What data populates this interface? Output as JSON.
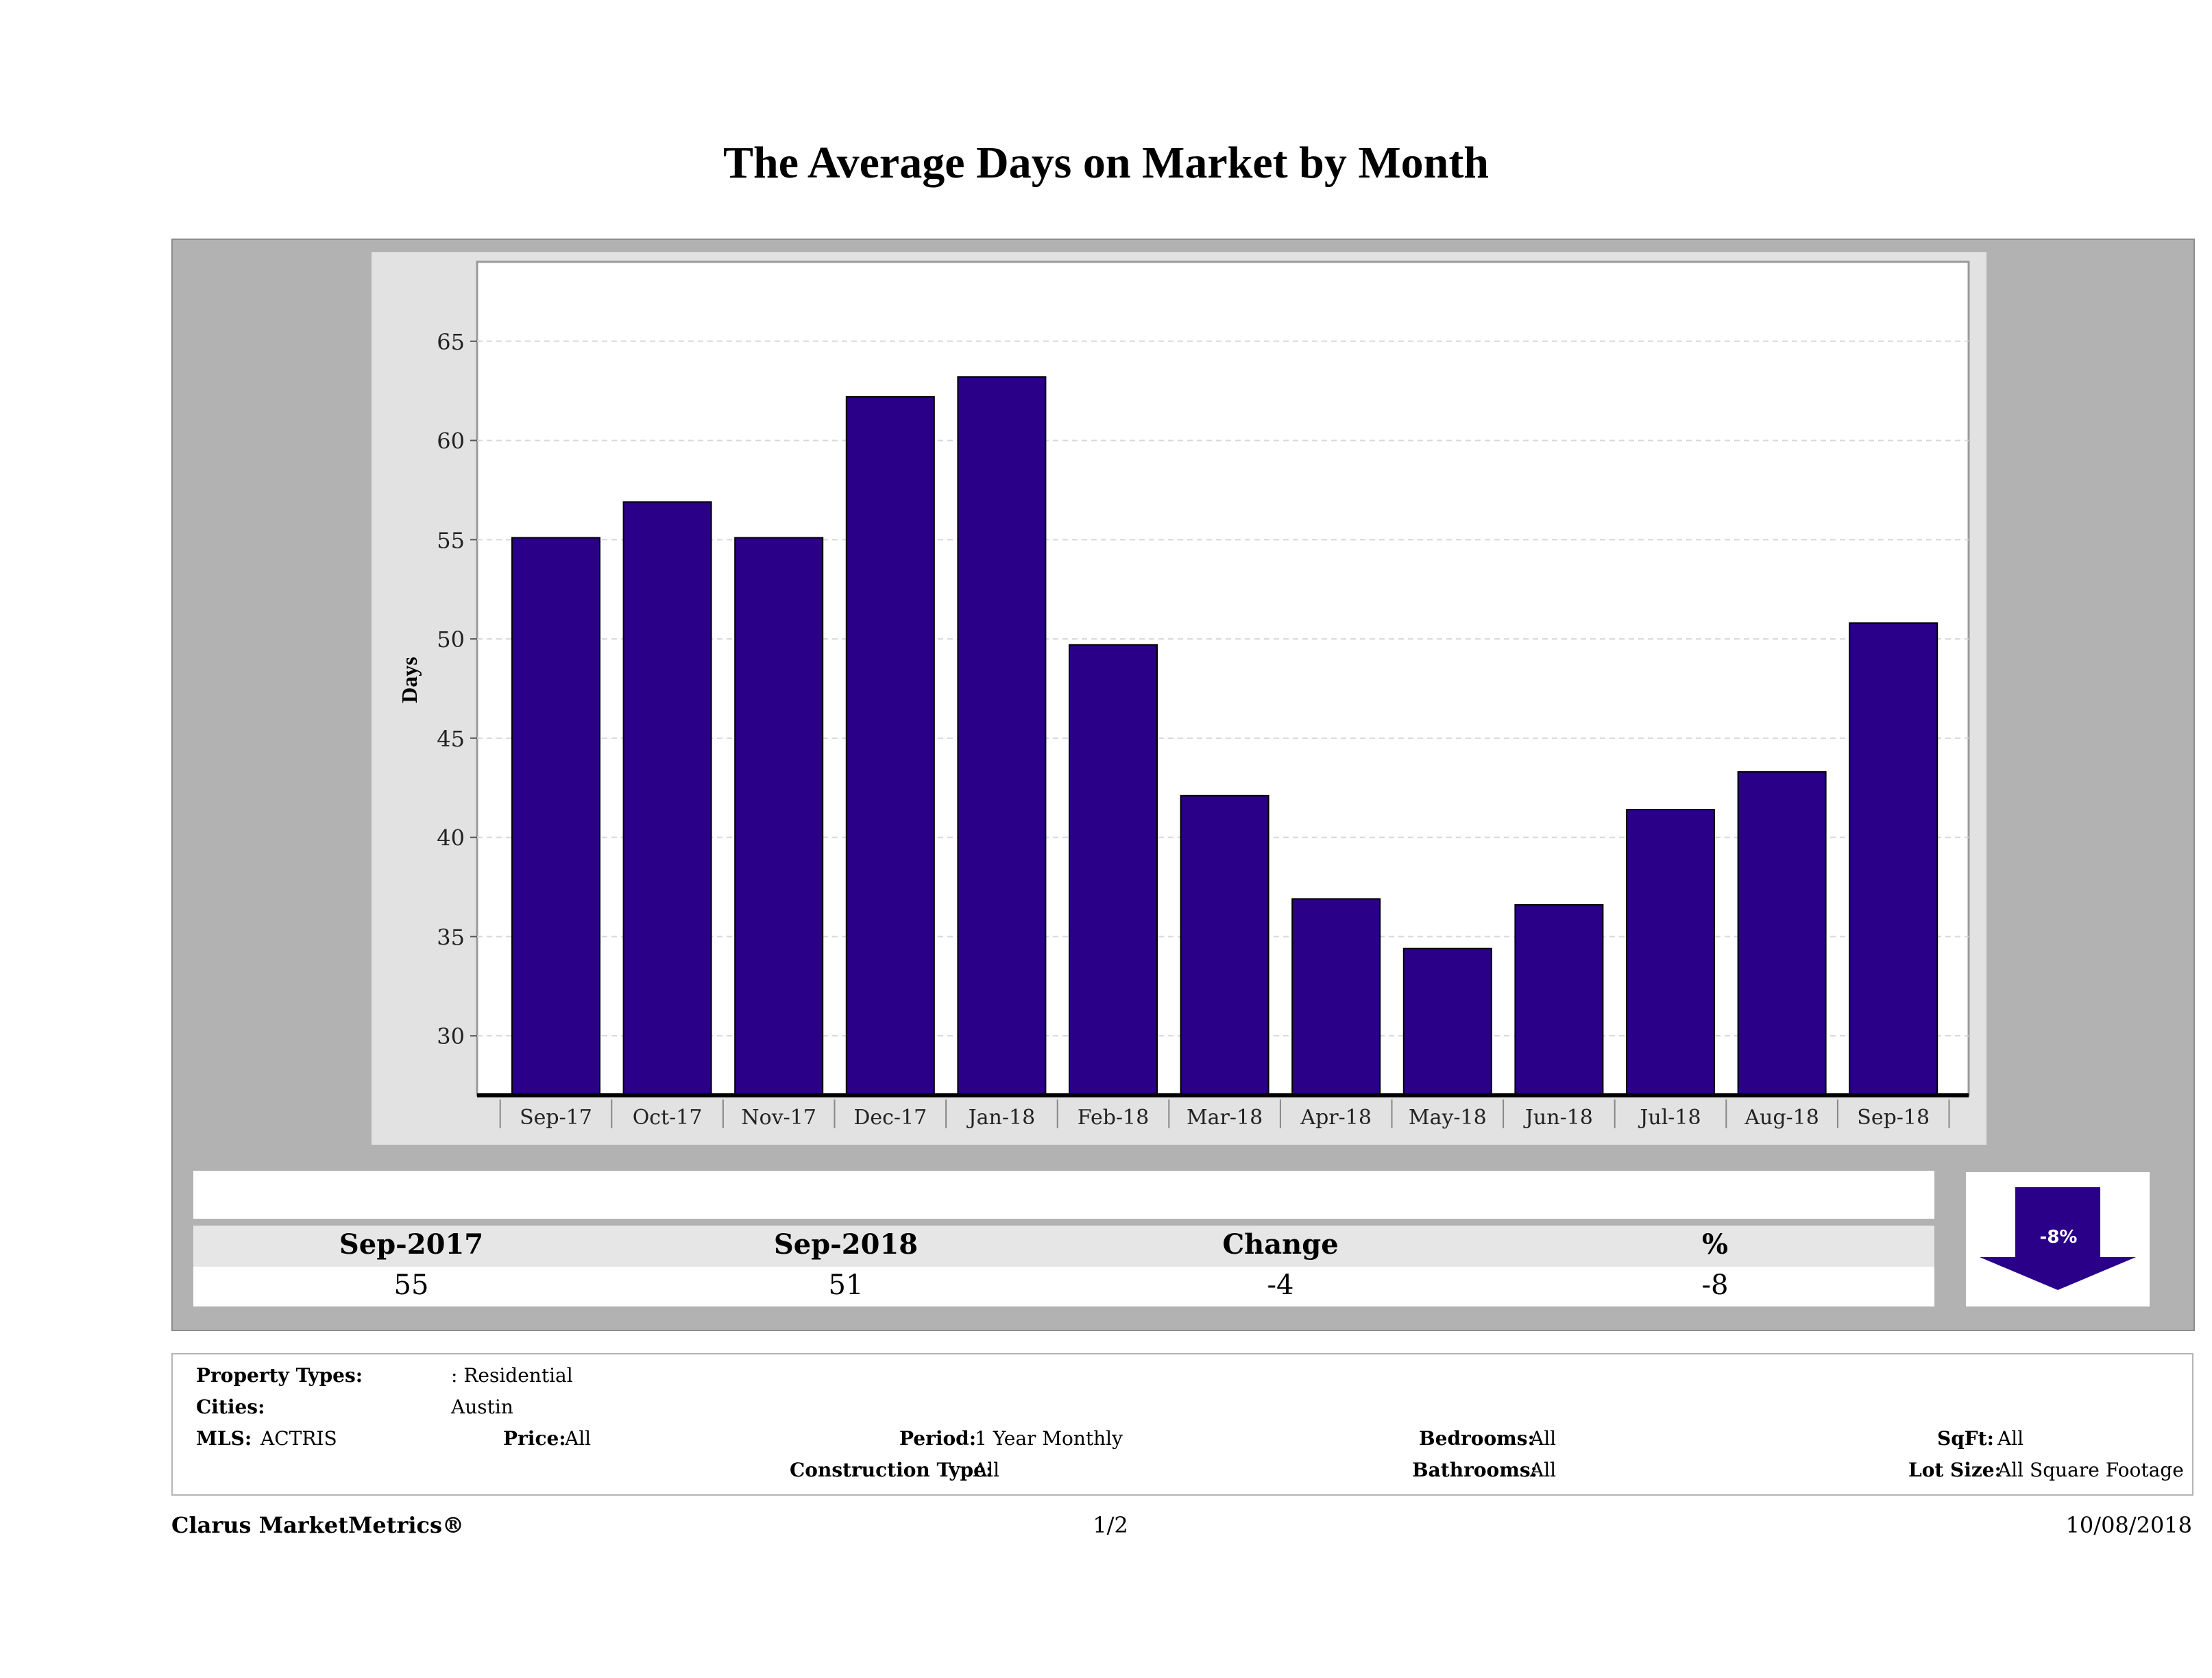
{
  "page": {
    "title": "The Average Days on Market by Month",
    "footer_left": "Clarus MarketMetrics®",
    "footer_center": "1/2",
    "footer_right": "10/08/2018"
  },
  "colors": {
    "bar": "#2a0088",
    "panel": "#b2b2b2",
    "chart_frame": "#e2e2e2"
  },
  "chart_data": {
    "type": "bar",
    "title": "The Average Days on Market by Month",
    "xlabel": "",
    "ylabel": "Days",
    "categories": [
      "Sep-17",
      "Oct-17",
      "Nov-17",
      "Dec-17",
      "Jan-18",
      "Feb-18",
      "Mar-18",
      "Apr-18",
      "May-18",
      "Jun-18",
      "Jul-18",
      "Aug-18",
      "Sep-18"
    ],
    "values": [
      55.1,
      56.9,
      55.1,
      62.2,
      63.2,
      49.7,
      42.1,
      36.9,
      34.4,
      36.6,
      41.4,
      43.3,
      50.8
    ],
    "ylim": [
      27,
      69
    ],
    "yticks": [
      30,
      35,
      40,
      45,
      50,
      55,
      60,
      65
    ],
    "grid": true,
    "legend": "none"
  },
  "summary": {
    "headers": [
      "Sep-2017",
      "Sep-2018",
      "Change",
      "%"
    ],
    "values": [
      "55",
      "51",
      "-4",
      "-8"
    ],
    "arrow_label": "-8%",
    "arrow_icon": "down-arrow-icon"
  },
  "criteria": {
    "property_types_label": "Property Types:",
    "property_types_value": ": Residential",
    "cities_label": "Cities:",
    "cities_value": "Austin",
    "mls_label": "MLS:",
    "mls_value": "ACTRIS",
    "price_label": "Price:",
    "price_value": "All",
    "period_label": "Period:",
    "period_value": "1 Year Monthly",
    "construction_label": "Construction Type:",
    "construction_value": "All",
    "bedrooms_label": "Bedrooms:",
    "bedrooms_value": "All",
    "bathrooms_label": "Bathrooms:",
    "bathrooms_value": "All",
    "sqft_label": "SqFt:",
    "sqft_value": "All",
    "lotsize_label": "Lot Size:",
    "lotsize_value": "All Square Footage"
  }
}
